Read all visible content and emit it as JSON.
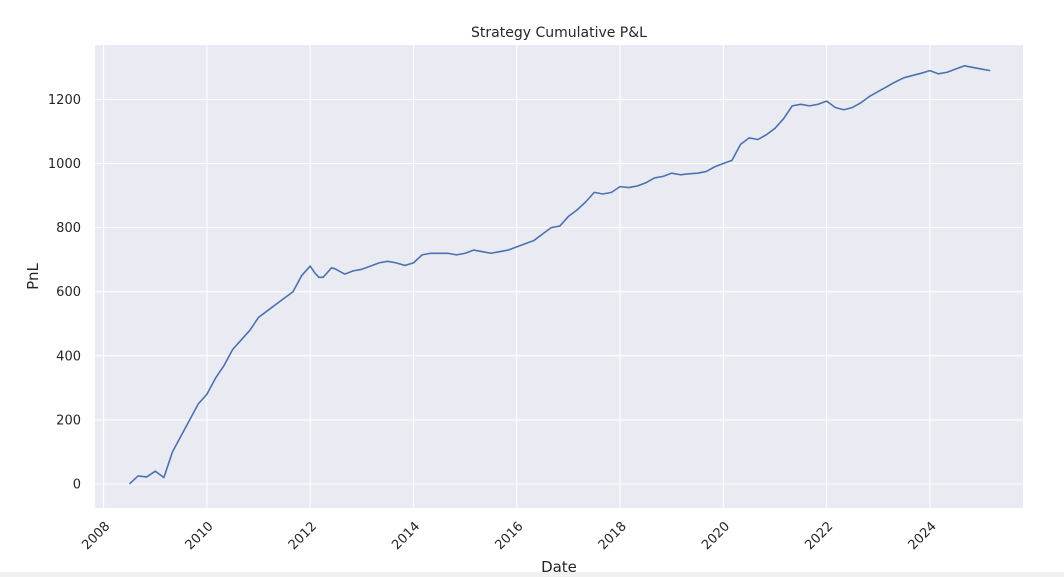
{
  "chart_data": {
    "type": "line",
    "title": "Strategy Cumulative P&L",
    "xlabel": "Date",
    "ylabel": "PnL",
    "grid": true,
    "legend": "none",
    "xlim": [
      "2007-11-01",
      "2025-10-20"
    ],
    "ylim": [
      -75,
      1370
    ],
    "x_ticks": [
      "2008",
      "2010",
      "2012",
      "2014",
      "2016",
      "2018",
      "2020",
      "2022",
      "2024"
    ],
    "y_ticks": [
      0,
      200,
      400,
      600,
      800,
      1000,
      1200
    ],
    "colors": {
      "line": "#4c72b0",
      "plot_bg": "#eaeaf2",
      "grid": "#ffffff",
      "text": "#262626"
    },
    "series": [
      {
        "x": [
          "2008-07",
          "2008-09",
          "2008-11",
          "2009-01",
          "2009-03",
          "2009-05",
          "2009-07",
          "2009-09",
          "2009-11",
          "2010-01",
          "2010-03",
          "2010-05",
          "2010-07",
          "2010-09",
          "2010-11",
          "2011-01",
          "2011-03",
          "2011-05",
          "2011-07",
          "2011-09",
          "2011-11",
          "2012-01",
          "2012-02",
          "2012-03",
          "2012-04",
          "2012-05",
          "2012-06",
          "2012-07",
          "2012-09",
          "2012-11",
          "2013-01",
          "2013-03",
          "2013-05",
          "2013-07",
          "2013-09",
          "2013-11",
          "2014-01",
          "2014-03",
          "2014-05",
          "2014-07",
          "2014-09",
          "2014-11",
          "2015-01",
          "2015-03",
          "2015-05",
          "2015-07",
          "2015-09",
          "2015-11",
          "2016-01",
          "2016-03",
          "2016-05",
          "2016-07",
          "2016-09",
          "2016-11",
          "2017-01",
          "2017-03",
          "2017-05",
          "2017-07",
          "2017-09",
          "2017-11",
          "2018-01",
          "2018-03",
          "2018-05",
          "2018-07",
          "2018-09",
          "2018-11",
          "2019-01",
          "2019-03",
          "2019-05",
          "2019-07",
          "2019-09",
          "2019-11",
          "2020-01",
          "2020-03",
          "2020-05",
          "2020-07",
          "2020-09",
          "2020-11",
          "2021-01",
          "2021-03",
          "2021-05",
          "2021-07",
          "2021-09",
          "2021-11",
          "2022-01",
          "2022-03",
          "2022-05",
          "2022-07",
          "2022-09",
          "2022-11",
          "2023-01",
          "2023-03",
          "2023-05",
          "2023-07",
          "2023-09",
          "2023-11",
          "2024-01",
          "2024-03",
          "2024-05",
          "2024-07",
          "2024-09",
          "2024-11",
          "2025-01",
          "2025-03"
        ],
        "y": [
          0,
          25,
          22,
          40,
          20,
          100,
          150,
          200,
          250,
          280,
          330,
          370,
          420,
          450,
          480,
          520,
          540,
          560,
          580,
          600,
          650,
          680,
          660,
          645,
          645,
          660,
          675,
          670,
          655,
          665,
          670,
          680,
          690,
          695,
          690,
          682,
          690,
          715,
          720,
          720,
          720,
          715,
          720,
          730,
          725,
          720,
          725,
          730,
          740,
          750,
          760,
          780,
          800,
          805,
          835,
          855,
          880,
          910,
          905,
          910,
          928,
          925,
          930,
          940,
          955,
          960,
          970,
          965,
          968,
          970,
          975,
          990,
          1000,
          1010,
          1060,
          1080,
          1075,
          1090,
          1110,
          1140,
          1180,
          1185,
          1180,
          1185,
          1195,
          1175,
          1168,
          1175,
          1190,
          1210,
          1225,
          1240,
          1255,
          1268,
          1275,
          1282,
          1290,
          1280,
          1285,
          1295,
          1305,
          1300,
          1295,
          1290
        ]
      }
    ]
  }
}
